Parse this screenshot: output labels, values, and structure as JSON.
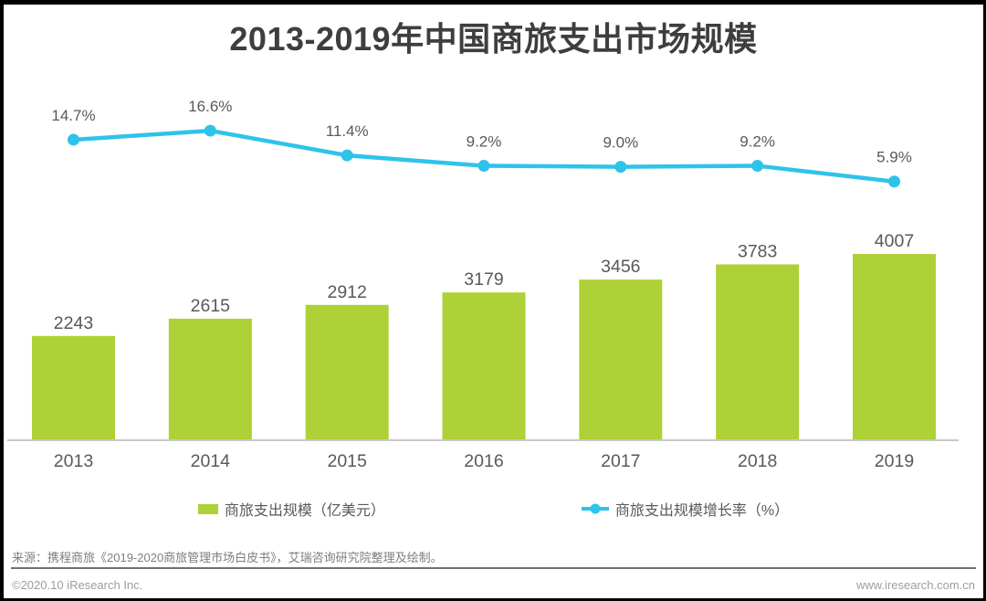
{
  "title": "2013-2019年中国商旅支出市场规模",
  "chart_data": {
    "type": "bar",
    "subtype": "bar+line-combo",
    "title": "2013-2019年中国商旅支出市场规模",
    "categories": [
      "2013",
      "2014",
      "2015",
      "2016",
      "2017",
      "2018",
      "2019"
    ],
    "series": [
      {
        "name": "商旅支出规模（亿美元）",
        "type": "bar",
        "unit": "亿美元",
        "values": [
          2243,
          2615,
          2912,
          3179,
          3456,
          3783,
          4007
        ],
        "labels": [
          "2243",
          "2615",
          "2912",
          "3179",
          "3456",
          "3783",
          "4007"
        ],
        "color": "#ADD136"
      },
      {
        "name": "商旅支出规模增长率（%）",
        "type": "line",
        "unit": "%",
        "values": [
          14.7,
          16.6,
          11.4,
          9.2,
          9.0,
          9.2,
          5.9
        ],
        "labels": [
          "14.7%",
          "16.6%",
          "11.4%",
          "9.2%",
          "9.0%",
          "9.2%",
          "5.9%"
        ],
        "color": "#2EC3EA"
      }
    ],
    "legend_position": "bottom",
    "grid": false,
    "data_labels": true,
    "y_axis_shown": false
  },
  "legend": {
    "items": [
      {
        "label": "商旅支出规模（亿美元）",
        "swatch": "bar"
      },
      {
        "label": "商旅支出规模增长率（%）",
        "swatch": "line"
      }
    ]
  },
  "source_note": "来源：携程商旅《2019-2020商旅管理市场白皮书》，艾瑞咨询研究院整理及绘制。",
  "footer": {
    "left": "©2020.10 iResearch Inc.",
    "right": "www.iresearch.com.cn"
  },
  "colors": {
    "bar_green": "#ADD136",
    "line_blue": "#2EC3EA",
    "axis_gray": "#C9C9C9",
    "label_gray": "#595959",
    "title_gray": "#3E3E3E"
  }
}
